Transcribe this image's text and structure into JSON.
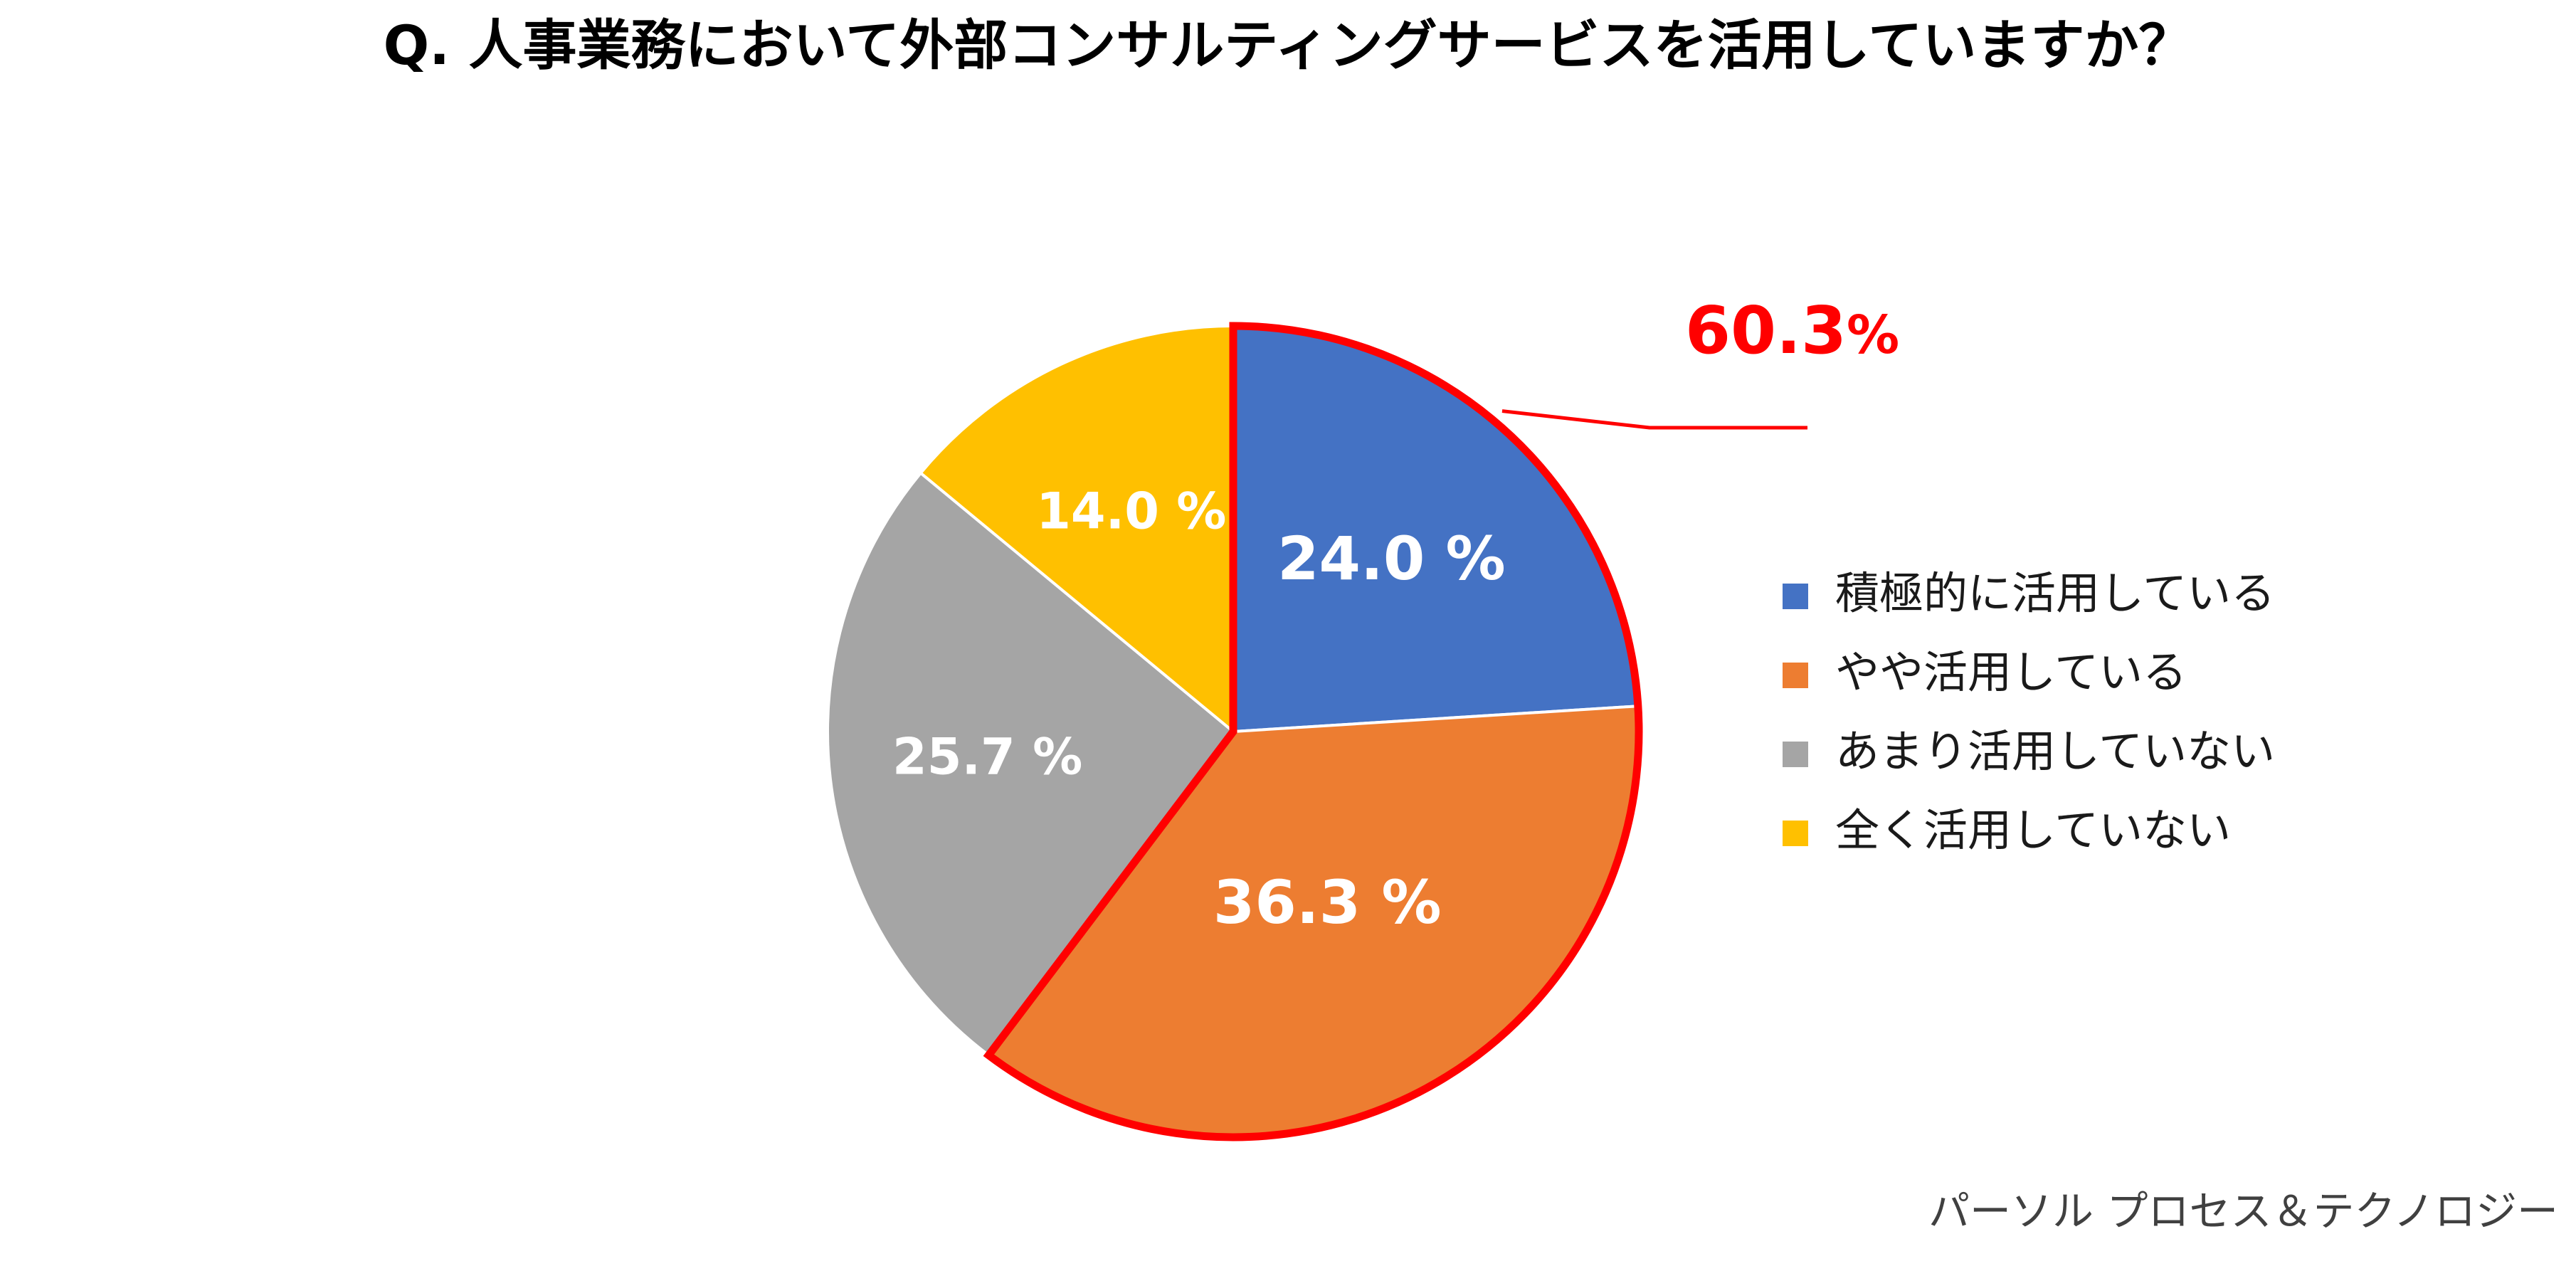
{
  "chart_data": {
    "type": "pie",
    "title": "Q. 人事業務において外部コンサルティングサービスを活用していますか？",
    "categories": [
      "積極的に活用している",
      "やや活用している",
      "あまり活用していない",
      "全く活用していない"
    ],
    "values": [
      24.0,
      36.3,
      25.7,
      14.0
    ],
    "value_labels": [
      "24.0 %",
      "36.3 %",
      "25.7 %",
      "14.0 %"
    ],
    "colors": [
      "#4472C4",
      "#ED7D31",
      "#A5A5A5",
      "#FFC000"
    ],
    "legend_position": "right",
    "start_angle": "12 o'clock, clockwise",
    "callout": {
      "value": "60.3",
      "unit": "%",
      "covers_categories": [
        "積極的に活用している",
        "やや活用している"
      ],
      "color": "#FF0000"
    },
    "credit": "パーソル プロセス＆テクノロジー"
  }
}
